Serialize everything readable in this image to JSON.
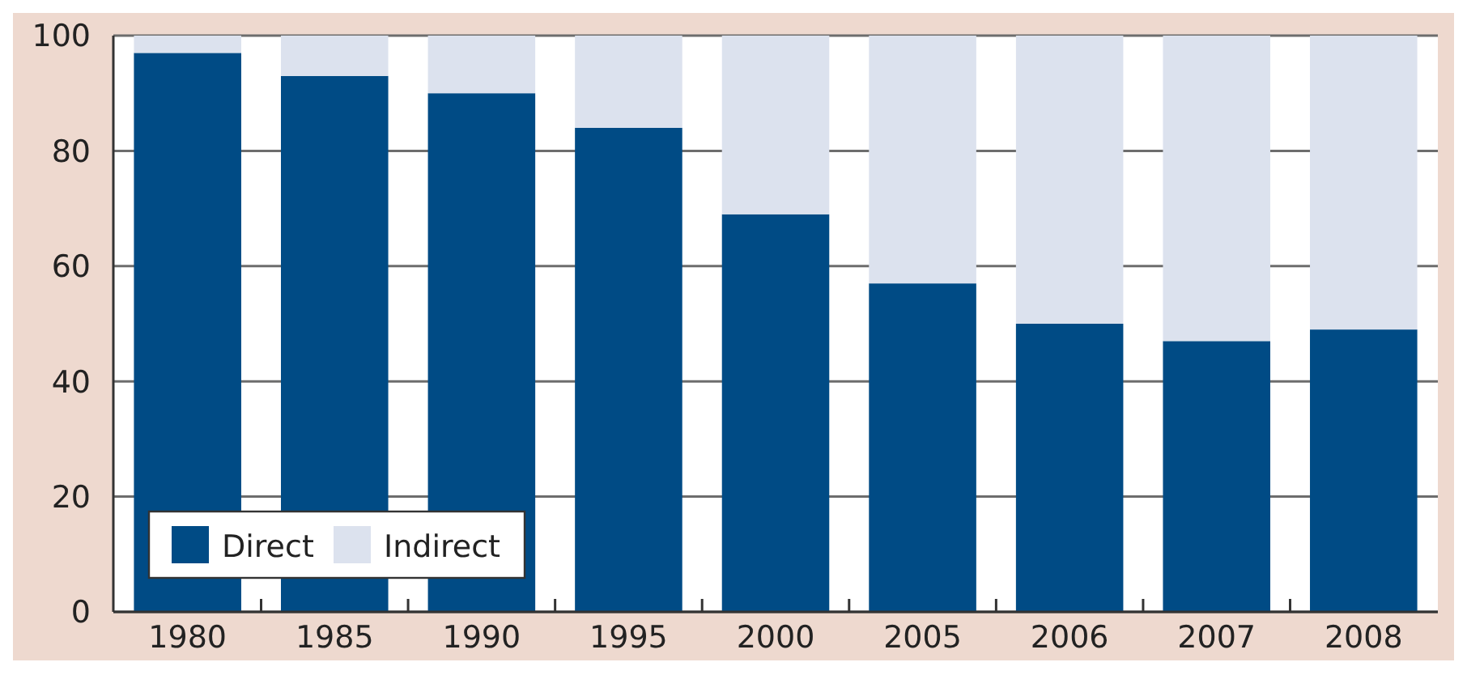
{
  "chart_data": {
    "type": "bar",
    "stacked": true,
    "categories": [
      "1980",
      "1985",
      "1990",
      "1995",
      "2000",
      "2005",
      "2006",
      "2007",
      "2008"
    ],
    "series": [
      {
        "name": "Direct",
        "color": "#004b85",
        "values": [
          97,
          93,
          90,
          84,
          69,
          57,
          50,
          47,
          49
        ]
      },
      {
        "name": "Indirect",
        "color": "#dce2ee",
        "values": [
          3,
          7,
          10,
          16,
          31,
          43,
          50,
          53,
          51
        ]
      }
    ],
    "ylim": [
      0,
      100
    ],
    "yticks": [
      0,
      20,
      40,
      60,
      80,
      100
    ],
    "grid": "y",
    "legend": "bottom left"
  }
}
